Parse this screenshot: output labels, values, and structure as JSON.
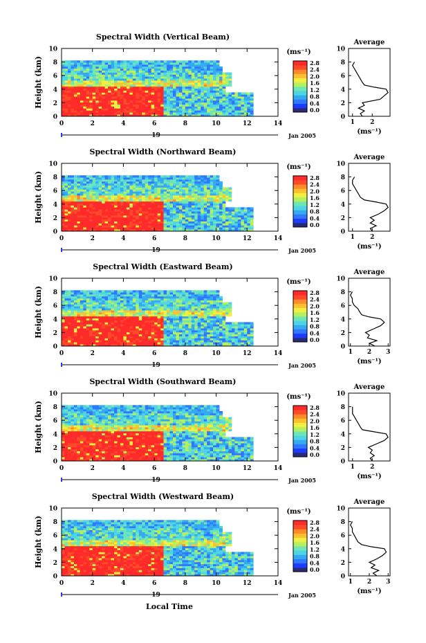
{
  "figure": {
    "xlabel": "Local Time",
    "ylabel": "Height (km)",
    "date_label": "Jan 2005",
    "day_label": "19",
    "cbar_unit": "(ms⁻¹)",
    "avg_title": "Average",
    "avg_xlabel": "(ms⁻¹)"
  },
  "colors": {
    "scale": [
      "#2a2a7a",
      "#1e3cff",
      "#2f78ff",
      "#35aaf0",
      "#4fd4e6",
      "#6fe6b4",
      "#b4f060",
      "#f0f040",
      "#ffc030",
      "#ff8a2a",
      "#ff4a2a",
      "#ff2a2a"
    ],
    "no_data": "#ffffff"
  },
  "chart_data": [
    {
      "type": "heatmap",
      "title": "Spectral Width (Vertical Beam)",
      "x_ticks": [
        "0",
        "2",
        "4",
        "6",
        "8",
        "10",
        "12",
        "14"
      ],
      "y_ticks": [
        "0",
        "2",
        "4",
        "6",
        "8",
        "10"
      ],
      "xlim": [
        0,
        14
      ],
      "ylim": [
        0,
        10
      ],
      "cbar_ticks": [
        "0.0",
        "0.4",
        "0.8",
        "1.2",
        "1.6",
        "2.0",
        "2.4",
        "2.8"
      ],
      "cbar_range": [
        0,
        2.8
      ],
      "avg": {
        "type": "line",
        "x_ticks": [
          "1",
          "2"
        ],
        "xlim": [
          0.8,
          2.9
        ],
        "points": [
          [
            1.5,
            0
          ],
          [
            1.4,
            0.4
          ],
          [
            1.6,
            0.8
          ],
          [
            1.3,
            1.2
          ],
          [
            1.6,
            1.6
          ],
          [
            1.5,
            2.0
          ],
          [
            2.4,
            2.5
          ],
          [
            2.6,
            3.0
          ],
          [
            2.8,
            3.5
          ],
          [
            2.7,
            4.0
          ],
          [
            2.1,
            4.3
          ],
          [
            1.6,
            4.6
          ],
          [
            1.5,
            5.0
          ],
          [
            1.4,
            5.5
          ],
          [
            1.3,
            6.0
          ],
          [
            1.2,
            6.5
          ],
          [
            1.1,
            7.0
          ],
          [
            1.0,
            7.5
          ],
          [
            1.1,
            8.0
          ]
        ]
      }
    },
    {
      "type": "heatmap",
      "title": "Spectral Width (Northward Beam)",
      "x_ticks": [
        "0",
        "2",
        "4",
        "6",
        "8",
        "10",
        "12",
        "14"
      ],
      "y_ticks": [
        "0",
        "2",
        "4",
        "6",
        "8",
        "10"
      ],
      "xlim": [
        0,
        14
      ],
      "ylim": [
        0,
        10
      ],
      "cbar_ticks": [
        "0.0",
        "0.4",
        "0.8",
        "1.2",
        "1.6",
        "2.0",
        "2.4",
        "2.8"
      ],
      "cbar_range": [
        0,
        2.8
      ],
      "avg": {
        "type": "line",
        "x_ticks": [
          "1",
          "2"
        ],
        "xlim": [
          0.8,
          2.9
        ],
        "points": [
          [
            2.0,
            0
          ],
          [
            1.9,
            0.4
          ],
          [
            2.2,
            0.8
          ],
          [
            1.9,
            1.2
          ],
          [
            2.1,
            1.6
          ],
          [
            1.9,
            2.0
          ],
          [
            2.3,
            2.5
          ],
          [
            2.6,
            3.0
          ],
          [
            2.8,
            3.5
          ],
          [
            2.7,
            4.0
          ],
          [
            2.2,
            4.3
          ],
          [
            1.6,
            4.6
          ],
          [
            1.4,
            5.0
          ],
          [
            1.3,
            5.5
          ],
          [
            1.2,
            6.0
          ],
          [
            1.1,
            6.5
          ],
          [
            1.0,
            7.0
          ],
          [
            1.0,
            7.5
          ],
          [
            1.1,
            8.0
          ]
        ]
      }
    },
    {
      "type": "heatmap",
      "title": "Spectral Width (Eastward Beam)",
      "x_ticks": [
        "0",
        "2",
        "4",
        "6",
        "8",
        "10",
        "12",
        "14"
      ],
      "y_ticks": [
        "0",
        "2",
        "4",
        "6",
        "8",
        "10"
      ],
      "xlim": [
        0,
        14
      ],
      "ylim": [
        0,
        10
      ],
      "cbar_ticks": [
        "0.0",
        "0.4",
        "0.8",
        "1.2",
        "1.6",
        "2.0",
        "2.4",
        "2.8"
      ],
      "cbar_range": [
        0,
        2.8
      ],
      "avg": {
        "type": "line",
        "x_ticks": [
          "1",
          "2",
          "3"
        ],
        "xlim": [
          0.9,
          3.1
        ],
        "points": [
          [
            2.3,
            0
          ],
          [
            2.0,
            0.4
          ],
          [
            2.4,
            0.8
          ],
          [
            1.9,
            1.2
          ],
          [
            2.0,
            1.6
          ],
          [
            1.8,
            2.0
          ],
          [
            2.2,
            2.5
          ],
          [
            2.6,
            3.0
          ],
          [
            2.8,
            3.5
          ],
          [
            2.6,
            4.0
          ],
          [
            2.0,
            4.3
          ],
          [
            1.6,
            4.6
          ],
          [
            1.5,
            5.0
          ],
          [
            1.4,
            5.5
          ],
          [
            1.2,
            6.0
          ],
          [
            1.1,
            6.5
          ],
          [
            1.1,
            7.0
          ],
          [
            1.0,
            7.5
          ],
          [
            1.1,
            8.0
          ]
        ]
      }
    },
    {
      "type": "heatmap",
      "title": "Spectral Width (Southward Beam)",
      "x_ticks": [
        "0",
        "2",
        "4",
        "6",
        "8",
        "10",
        "12",
        "14"
      ],
      "y_ticks": [
        "0",
        "2",
        "4",
        "6",
        "8",
        "10"
      ],
      "xlim": [
        0,
        14
      ],
      "ylim": [
        0,
        10
      ],
      "cbar_ticks": [
        "0.0",
        "0.4",
        "0.8",
        "1.2",
        "1.6",
        "2.0",
        "2.4",
        "2.8"
      ],
      "cbar_range": [
        0,
        2.8
      ],
      "avg": {
        "type": "line",
        "x_ticks": [
          "1",
          "2"
        ],
        "xlim": [
          0.8,
          2.9
        ],
        "points": [
          [
            2.0,
            0
          ],
          [
            1.9,
            0.4
          ],
          [
            2.1,
            0.8
          ],
          [
            1.9,
            1.2
          ],
          [
            2.0,
            1.6
          ],
          [
            1.8,
            2.0
          ],
          [
            2.2,
            2.5
          ],
          [
            2.6,
            3.0
          ],
          [
            2.8,
            3.5
          ],
          [
            2.7,
            4.0
          ],
          [
            2.1,
            4.3
          ],
          [
            1.5,
            4.6
          ],
          [
            1.4,
            5.0
          ],
          [
            1.3,
            5.5
          ],
          [
            1.2,
            6.0
          ],
          [
            1.1,
            6.5
          ],
          [
            1.0,
            7.0
          ],
          [
            1.0,
            7.5
          ],
          [
            1.0,
            8.0
          ]
        ]
      }
    },
    {
      "type": "heatmap",
      "title": "Spectral Width (Westward Beam)",
      "x_ticks": [
        "0",
        "2",
        "4",
        "6",
        "8",
        "10",
        "12",
        "14"
      ],
      "y_ticks": [
        "0",
        "2",
        "4",
        "6",
        "8",
        "10"
      ],
      "xlim": [
        0,
        14
      ],
      "ylim": [
        0,
        10
      ],
      "cbar_ticks": [
        "0.0",
        "0.4",
        "0.8",
        "1.2",
        "1.6",
        "2.0",
        "2.4",
        "2.8"
      ],
      "cbar_range": [
        0,
        2.8
      ],
      "avg": {
        "type": "line",
        "x_ticks": [
          "1",
          "2",
          "3"
        ],
        "xlim": [
          0.9,
          3.1
        ],
        "points": [
          [
            2.4,
            0
          ],
          [
            2.2,
            0.4
          ],
          [
            2.5,
            0.8
          ],
          [
            2.1,
            1.2
          ],
          [
            2.3,
            1.6
          ],
          [
            2.0,
            2.0
          ],
          [
            2.4,
            2.5
          ],
          [
            2.7,
            3.0
          ],
          [
            2.9,
            3.5
          ],
          [
            2.8,
            4.0
          ],
          [
            2.1,
            4.3
          ],
          [
            1.6,
            4.6
          ],
          [
            1.4,
            5.0
          ],
          [
            1.3,
            5.5
          ],
          [
            1.2,
            6.0
          ],
          [
            1.1,
            6.5
          ],
          [
            1.1,
            7.0
          ],
          [
            1.0,
            7.5
          ],
          [
            1.1,
            8.0
          ]
        ]
      }
    }
  ]
}
